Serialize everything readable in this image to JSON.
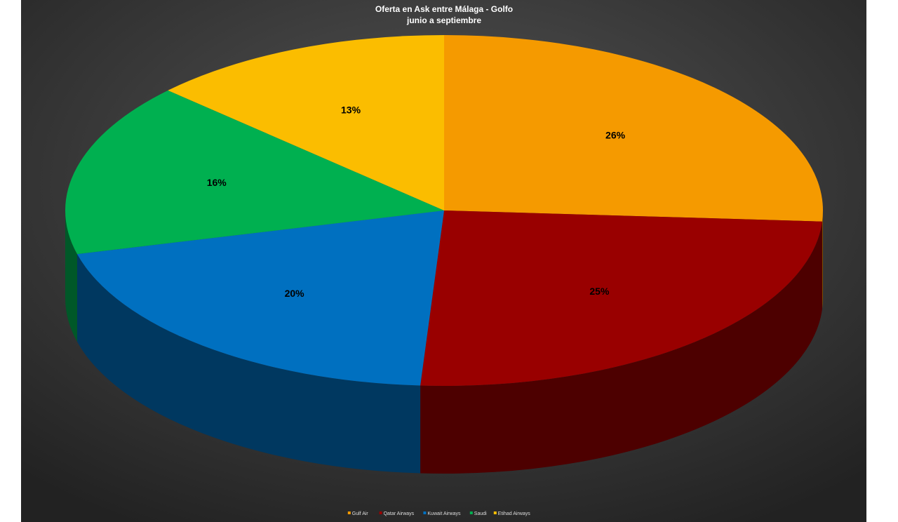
{
  "chart_data": {
    "type": "pie",
    "title": "Oferta en Ask entre Málaga  - Golfo",
    "subtitle": "junio  a septiembre",
    "categories": [
      "Gulf Air",
      "Qatar Airways",
      "Kuwait Airways",
      "Saudi",
      "Etihad Airways"
    ],
    "values": [
      26,
      25,
      20,
      16,
      13
    ],
    "value_labels": [
      "26%",
      "25%",
      "20%",
      "16%",
      "13%"
    ],
    "colors": [
      "#f59a00",
      "#990000",
      "#0070c0",
      "#00b050",
      "#fbbd00"
    ],
    "legend": "bottom"
  }
}
